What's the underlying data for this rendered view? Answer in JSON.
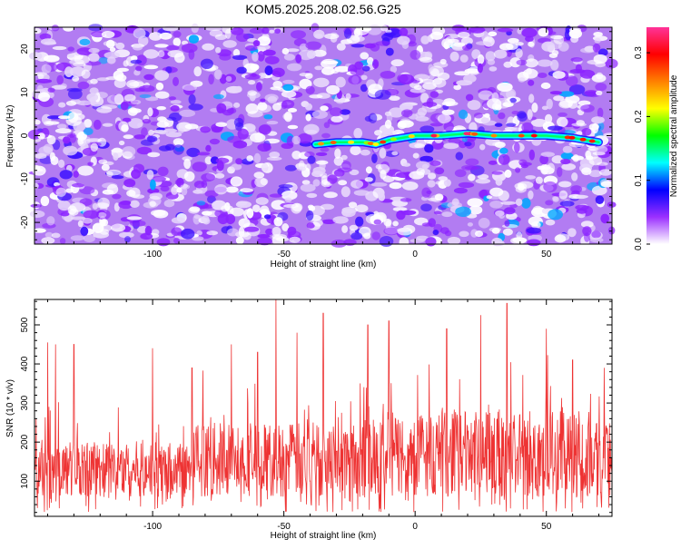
{
  "figure": {
    "title": "KOM5.2025.208.02.56.G25"
  },
  "chart_data": [
    {
      "type": "heatmap",
      "xlabel": "Height of straight line (km)",
      "ylabel": "Frequency (Hz)",
      "xlim": [
        -145,
        75
      ],
      "ylim": [
        -25,
        25
      ],
      "x_ticks": [
        -100,
        -50,
        0,
        50
      ],
      "y_ticks": [
        20,
        10,
        0,
        -10,
        -20
      ],
      "colorbar": {
        "label": "Normalized spectral amplitude",
        "range": [
          0.0,
          0.34
        ],
        "ticks": [
          0.0,
          0.1,
          0.2,
          0.3
        ],
        "colors": [
          "#ffffff",
          "#9b30ff",
          "#0000ff",
          "#00ffff",
          "#00ff00",
          "#ffff00",
          "#ff8000",
          "#ff0000",
          "#ff3399"
        ]
      },
      "ridge": {
        "description_points_x": [
          -38,
          -30,
          -20,
          -15,
          -10,
          0,
          10,
          20,
          30,
          40,
          50,
          60,
          70
        ],
        "description_points_y": [
          -2,
          -1.5,
          -1.5,
          -2,
          -1,
          0,
          0,
          0.5,
          0,
          0,
          0,
          -0.5,
          -1.5
        ],
        "peak_value_approx": 0.34
      }
    },
    {
      "type": "line",
      "xlabel": "Height of straight line (km)",
      "ylabel": "SNR (10 * v/v)",
      "xlim": [
        -145,
        75
      ],
      "ylim": [
        10,
        565
      ],
      "x_ticks": [
        -100,
        -50,
        0,
        50
      ],
      "y_ticks": [
        100,
        200,
        300,
        400,
        500
      ],
      "series": [
        {
          "color": "#ee3333",
          "values_summary": {
            "baseline_range": [
              60,
              250
            ],
            "notable_peaks_x": [
              -140,
              -137,
              -130,
              -100,
              -85,
              -70,
              -60,
              -53,
              -45,
              -35,
              -18,
              -10,
              12,
              25,
              35,
              50,
              60,
              72
            ],
            "notable_peaks_y": [
              455,
              450,
              450,
              440,
              390,
              450,
              430,
              565,
              480,
              530,
              500,
              510,
              490,
              525,
              555,
              490,
              410,
              390
            ]
          }
        }
      ]
    }
  ]
}
